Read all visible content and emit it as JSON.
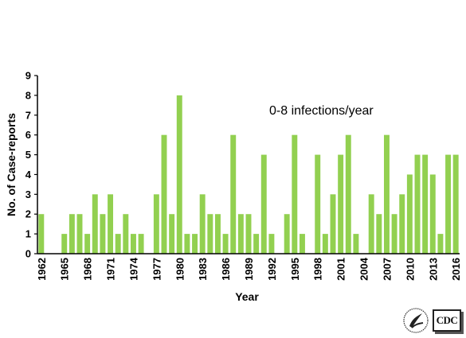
{
  "chart_data": {
    "type": "bar",
    "title": "",
    "xlabel": "Year",
    "ylabel": "No. of Case-reports",
    "annotation": "0-8 infections/year",
    "ylim": [
      0,
      9
    ],
    "yticks": [
      0,
      1,
      2,
      3,
      4,
      5,
      6,
      7,
      8,
      9
    ],
    "xtick_labels": [
      "1962",
      "1965",
      "1968",
      "1971",
      "1974",
      "1977",
      "1980",
      "1983",
      "1986",
      "1989",
      "1992",
      "1995",
      "1998",
      "2001",
      "2004",
      "2007",
      "2010",
      "2013",
      "2016"
    ],
    "grid": false,
    "bar_color": "#92d050",
    "categories": [
      1962,
      1963,
      1964,
      1965,
      1966,
      1967,
      1968,
      1969,
      1970,
      1971,
      1972,
      1973,
      1974,
      1975,
      1976,
      1977,
      1978,
      1979,
      1980,
      1981,
      1982,
      1983,
      1984,
      1985,
      1986,
      1987,
      1988,
      1989,
      1990,
      1991,
      1992,
      1993,
      1994,
      1995,
      1996,
      1997,
      1998,
      1999,
      2000,
      2001,
      2002,
      2003,
      2004,
      2005,
      2006,
      2007,
      2008,
      2009,
      2010,
      2011,
      2012,
      2013,
      2014,
      2015,
      2016
    ],
    "values": [
      2,
      0,
      0,
      1,
      2,
      2,
      1,
      3,
      2,
      3,
      1,
      2,
      1,
      1,
      0,
      3,
      6,
      2,
      8,
      1,
      1,
      3,
      2,
      2,
      1,
      6,
      2,
      2,
      1,
      5,
      1,
      0,
      2,
      6,
      1,
      0,
      5,
      1,
      3,
      5,
      6,
      1,
      0,
      3,
      2,
      6,
      2,
      3,
      4,
      5,
      5,
      4,
      1,
      5,
      5
    ]
  },
  "logos": {
    "seal_icon": "hhs-seal-icon",
    "cdc_text": "CDC"
  }
}
